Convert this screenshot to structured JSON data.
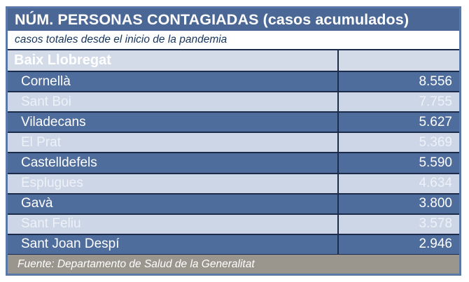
{
  "title": "NÚM. PERSONAS CONTAGIADAS (casos acumulados)",
  "subtitle": "casos totales desde el inicio de la pandemia",
  "region_header": "Baix Llobregat",
  "source": "Fuente: Departamento de Salud de la Generalitat",
  "colors": {
    "title_bg": "#4a6795",
    "dark_row_bg": "#4f6d9c",
    "light_row_bg": "#ccd6e7",
    "header_row_bg": "#d4dbe8",
    "footer_bg": "#9a968e",
    "outer_border": "#5b79a8",
    "separator": "#1c2b4a",
    "subtitle_text": "#17365d"
  },
  "chart_data": {
    "type": "table",
    "title": "NÚM. PERSONAS CONTAGIADAS (casos acumulados)",
    "subtitle": "casos totales desde el inicio de la pandemia",
    "region": "Baix Llobregat",
    "rows": [
      {
        "name": "Cornellà",
        "value": "8.556"
      },
      {
        "name": "Sant Boi",
        "value": "7.755"
      },
      {
        "name": "Viladecans",
        "value": "5.627"
      },
      {
        "name": "El Prat",
        "value": "5.369"
      },
      {
        "name": "Castelldefels",
        "value": "5.590"
      },
      {
        "name": "Esplugues",
        "value": "4.634"
      },
      {
        "name": "Gavà",
        "value": "3.800"
      },
      {
        "name": "Sant Feliu",
        "value": "3.578"
      },
      {
        "name": "Sant Joan Despí",
        "value": "2.946"
      }
    ],
    "values_numeric": [
      8556,
      7755,
      5627,
      5369,
      5590,
      4634,
      3800,
      3578,
      2946
    ],
    "source": "Fuente: Departamento de Salud de la Generalitat"
  }
}
